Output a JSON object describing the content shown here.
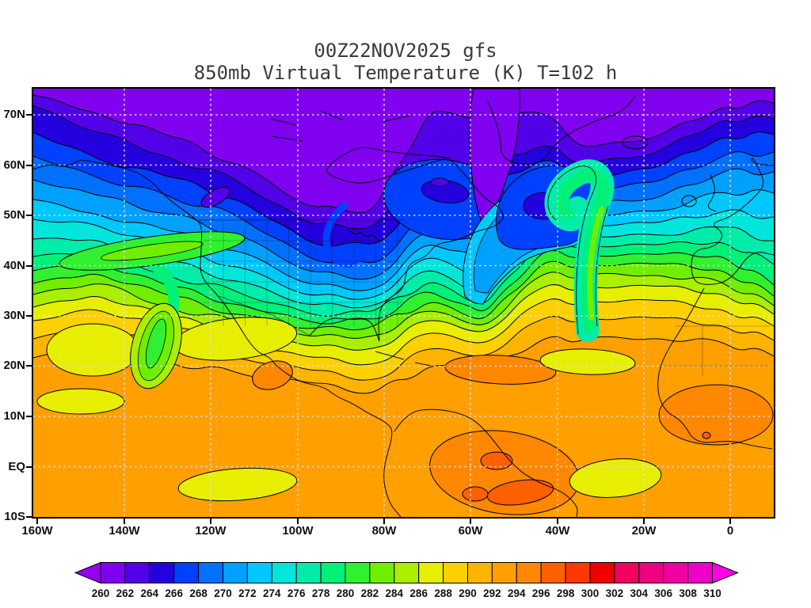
{
  "header": {
    "title": "00Z22NOV2025 gfs",
    "subtitle": "850mb Virtual Temperature (K) T=102 h"
  },
  "chart_data": {
    "type": "filled_contour_map",
    "title": "00Z22NOV2025 gfs",
    "subtitle": "850mb Virtual Temperature (K) T=102 h",
    "model": "gfs",
    "init_time": "00Z22NOV2025",
    "forecast_hour_label": "T=102 h",
    "level": "850mb",
    "variable": "Virtual Temperature",
    "units": "K",
    "contour_interval_K": 2,
    "lat_ticks": [
      "70N",
      "60N",
      "50N",
      "40N",
      "30N",
      "20N",
      "10N",
      "EQ",
      "10S"
    ],
    "lon_ticks": [
      "160W",
      "140W",
      "120W",
      "100W",
      "80W",
      "60W",
      "40W",
      "20W",
      "0"
    ],
    "grid": "dotted lat/lon graticule every 10 deg lat, 20 deg lon",
    "colorbar": {
      "values": [
        260,
        262,
        264,
        266,
        268,
        270,
        272,
        274,
        276,
        278,
        280,
        282,
        284,
        286,
        288,
        290,
        292,
        294,
        296,
        298,
        300,
        302,
        304,
        306,
        308,
        310
      ],
      "colors": [
        "#9400F0",
        "#8000F0",
        "#5200E8",
        "#2400DE",
        "#0040FF",
        "#0070FF",
        "#00A0FF",
        "#00C8FF",
        "#00E6DC",
        "#00ECAA",
        "#00F078",
        "#30F030",
        "#70EE00",
        "#AAEE00",
        "#E8EE00",
        "#FFD000",
        "#FFB400",
        "#FFA000",
        "#FF8800",
        "#FF6000",
        "#FF3800",
        "#F00000",
        "#F00060",
        "#EE0080",
        "#EE00A2",
        "#EE00C8",
        "#FF00E8"
      ],
      "arrow_low": true,
      "arrow_high": true
    },
    "field_summary": [
      {
        "region": "Arctic and northern Canada (top of map)",
        "approx_range_K": "260-266"
      },
      {
        "region": "Cold trough digging over western/central North America (~110W-95W, down to ~35N)",
        "approx_range_K": "266-276"
      },
      {
        "region": "Occluded cyclone spiral over the North Atlantic (~45W, 50N)",
        "approx_range_K": "266-282"
      },
      {
        "region": "Midlatitude belt 30N-40N (Pacific and Atlantic)",
        "approx_range_K": "278-288"
      },
      {
        "region": "Subtropics and tropics (20N-10S)",
        "approx_range_K": "288-296"
      },
      {
        "region": "Hot spots over interior South America and the Sahel",
        "approx_range_K": "296-300"
      }
    ],
    "frame_color": "#000000",
    "grid_color": "#E2E2E2"
  }
}
